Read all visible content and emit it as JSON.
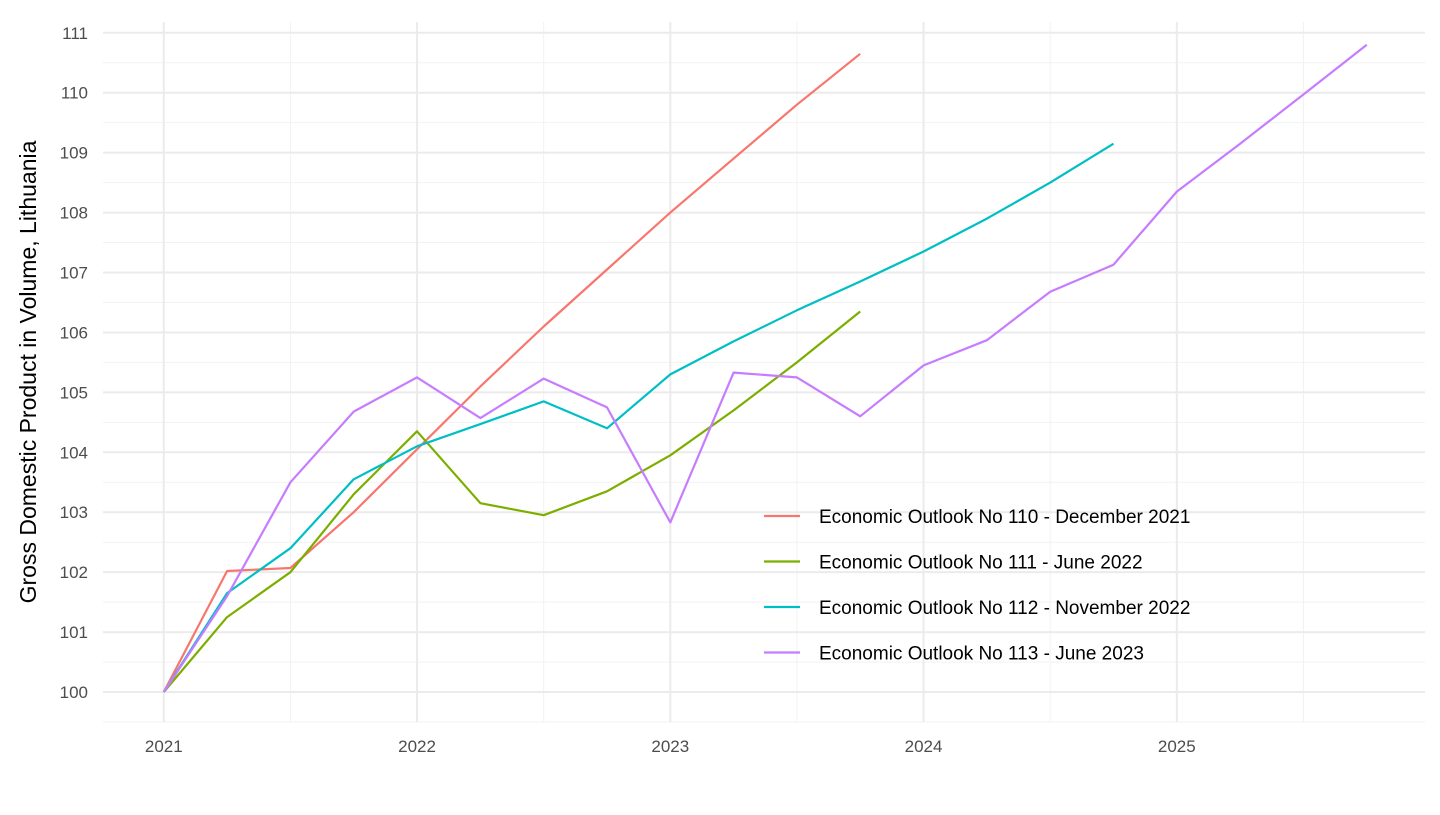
{
  "chart_data": {
    "type": "line",
    "title": "",
    "xlabel": "",
    "ylabel": "Gross Domestic Product in Volume, Lithuania",
    "xlim": [
      2020.76,
      2025.98
    ],
    "ylim": [
      99.5,
      111.18
    ],
    "x_ticks": [
      2021,
      2022,
      2023,
      2024,
      2025
    ],
    "y_ticks": [
      100,
      101,
      102,
      103,
      104,
      105,
      106,
      107,
      108,
      109,
      110,
      111
    ],
    "grid": true,
    "legend_position": "bottom-right inside",
    "series": [
      {
        "name": "Economic Outlook No 110 - December 2021",
        "color": "#F8766D",
        "x_start": 2021,
        "x_step": 0.25,
        "values": [
          100,
          102.02,
          102.07,
          103.0,
          104.05,
          105.1,
          106.1,
          107.05,
          108.0,
          108.9,
          109.8,
          110.65
        ]
      },
      {
        "name": "Economic Outlook No 111 - June 2022",
        "color": "#7CAE00",
        "x_start": 2021,
        "x_step": 0.25,
        "values": [
          100,
          101.25,
          102.0,
          103.3,
          104.35,
          103.15,
          102.95,
          103.35,
          103.95,
          104.7,
          105.5,
          106.35
        ]
      },
      {
        "name": "Economic Outlook No 112 - November 2022",
        "color": "#00BFC4",
        "x_start": 2021,
        "x_step": 0.25,
        "values": [
          100,
          101.65,
          102.4,
          103.55,
          104.1,
          104.47,
          104.85,
          104.4,
          105.3,
          105.85,
          106.37,
          106.85,
          107.35,
          107.9,
          108.5,
          109.15
        ]
      },
      {
        "name": "Economic Outlook No 113 - June 2023",
        "color": "#C77CFF",
        "x_start": 2021,
        "x_step": 0.25,
        "values": [
          100,
          101.6,
          103.5,
          104.68,
          105.25,
          104.57,
          105.23,
          104.75,
          102.83,
          105.33,
          105.25,
          104.6,
          105.45,
          105.87,
          106.68,
          107.13,
          108.35,
          109.15,
          109.97,
          110.8
        ]
      }
    ]
  }
}
